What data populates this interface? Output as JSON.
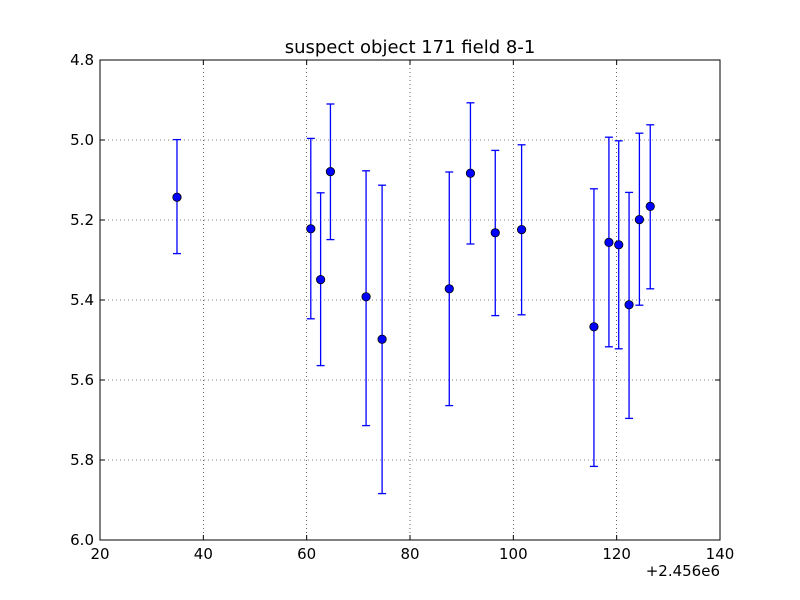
{
  "chart_data": {
    "type": "scatter",
    "title": "suspect object 171 field 8-1",
    "xlabel": "",
    "ylabel": "",
    "x_offset_label": "+2.456e6",
    "xlim": [
      20,
      140
    ],
    "ylim": [
      4.8,
      6.0
    ],
    "y_inverted": true,
    "grid": true,
    "x_ticks": [
      "20",
      "40",
      "60",
      "80",
      "100",
      "120",
      "140"
    ],
    "y_ticks": [
      "4.8",
      "5.0",
      "5.2",
      "5.4",
      "5.6",
      "5.8",
      "6.0"
    ],
    "marker_color": "#0000ff",
    "points": [
      {
        "x": 34.9,
        "y": 5.143,
        "err_low": 4.999,
        "err_high": 5.284
      },
      {
        "x": 60.8,
        "y": 5.222,
        "err_low": 4.996,
        "err_high": 5.447
      },
      {
        "x": 62.7,
        "y": 5.349,
        "err_low": 5.132,
        "err_high": 5.564
      },
      {
        "x": 64.6,
        "y": 5.079,
        "err_low": 4.91,
        "err_high": 5.249
      },
      {
        "x": 71.5,
        "y": 5.392,
        "err_low": 5.077,
        "err_high": 5.714
      },
      {
        "x": 74.6,
        "y": 5.498,
        "err_low": 5.113,
        "err_high": 5.884
      },
      {
        "x": 87.6,
        "y": 5.372,
        "err_low": 5.08,
        "err_high": 5.664
      },
      {
        "x": 91.7,
        "y": 5.083,
        "err_low": 4.907,
        "err_high": 5.26
      },
      {
        "x": 96.5,
        "y": 5.232,
        "err_low": 5.026,
        "err_high": 5.439
      },
      {
        "x": 101.6,
        "y": 5.224,
        "err_low": 5.012,
        "err_high": 5.437
      },
      {
        "x": 115.6,
        "y": 5.467,
        "err_low": 5.122,
        "err_high": 5.816
      },
      {
        "x": 118.5,
        "y": 5.256,
        "err_low": 4.993,
        "err_high": 5.517
      },
      {
        "x": 120.4,
        "y": 5.262,
        "err_low": 5.002,
        "err_high": 5.522
      },
      {
        "x": 122.4,
        "y": 5.412,
        "err_low": 5.131,
        "err_high": 5.696
      },
      {
        "x": 124.4,
        "y": 5.199,
        "err_low": 4.983,
        "err_high": 5.413
      },
      {
        "x": 126.5,
        "y": 5.166,
        "err_low": 4.962,
        "err_high": 5.372
      }
    ]
  }
}
